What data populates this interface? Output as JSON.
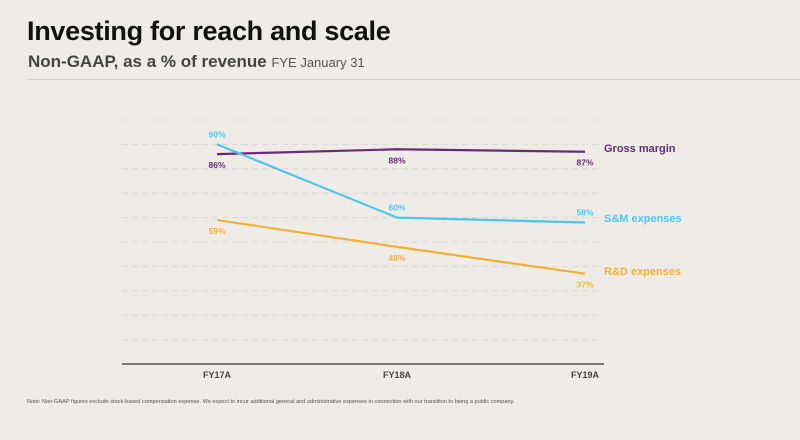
{
  "header": {
    "title": "Investing for reach and scale",
    "subtitle": "Non-GAAP, as a % of revenue",
    "subtitle_suffix": "FYE January 31"
  },
  "chart_data": {
    "type": "line",
    "title": "Investing for reach and scale",
    "subtitle": "Non-GAAP, as a % of revenue FYE January 31",
    "xlabel": "",
    "ylabel": "",
    "categories": [
      "FY17A",
      "FY18A",
      "FY19A"
    ],
    "ylim": [
      0,
      100
    ],
    "grid": true,
    "legend": "right (inline labels at line ends)",
    "series": [
      {
        "name": "Gross margin",
        "values": [
          86,
          88,
          87
        ],
        "labels": [
          "86%",
          "88%",
          "87%"
        ],
        "color": "#6b2a78"
      },
      {
        "name": "S&M expenses",
        "values": [
          90,
          60,
          58
        ],
        "labels": [
          "90%",
          "60%",
          "58%"
        ],
        "color": "#4dc6f0"
      },
      {
        "name": "R&D expenses",
        "values": [
          59,
          48,
          37
        ],
        "labels": [
          "59%",
          "48%",
          "37%"
        ],
        "color": "#f2b134"
      }
    ]
  },
  "footer": {
    "note": "Note: Non-GAAP figures exclude stock-based compensation expense. We expect to incur additional general and administrative expenses in connection with our transition to being a public company."
  }
}
